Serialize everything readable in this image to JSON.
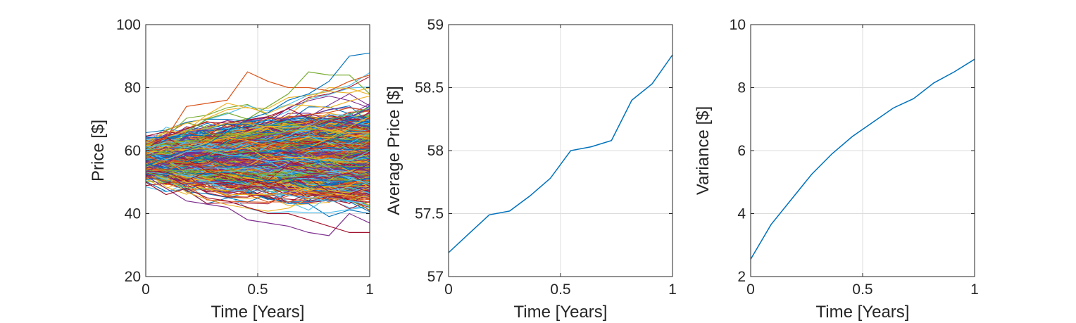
{
  "colors": {
    "axis": "#262626",
    "grid": "#dcdcdc",
    "line": "#0072bd",
    "palette": [
      "#0072bd",
      "#d95319",
      "#edb120",
      "#7e2f8e",
      "#77ac30",
      "#4dbeee",
      "#a2142f"
    ]
  },
  "chart_data": [
    {
      "type": "line",
      "xlabel": "Time [Years]",
      "ylabel": "Price [$]",
      "xlim": [
        0,
        1
      ],
      "ylim": [
        20,
        100
      ],
      "xticks": [
        "0",
        "0.5",
        "1"
      ],
      "yticks": [
        "20",
        "40",
        "60",
        "80",
        "100"
      ],
      "grid": true,
      "x": [
        0,
        0.0909,
        0.1818,
        0.2727,
        0.3636,
        0.4545,
        0.5455,
        0.6364,
        0.7273,
        0.8182,
        0.9091,
        1.0
      ],
      "simulated_paths": 1000,
      "initial_price": 57.2,
      "highlighted_paths": [
        {
          "values": [
            62,
            64,
            74,
            75,
            76,
            85,
            82,
            80,
            80,
            79,
            82,
            84
          ]
        },
        {
          "values": [
            58,
            60,
            66,
            70,
            72,
            70,
            74,
            78,
            85,
            84,
            84,
            78
          ]
        },
        {
          "values": [
            55,
            58,
            60,
            62,
            66,
            70,
            72,
            76,
            78,
            82,
            90,
            91
          ]
        },
        {
          "values": [
            52,
            48,
            44,
            43,
            42,
            38,
            37,
            36,
            34,
            33,
            40,
            37
          ]
        },
        {
          "values": [
            50,
            46,
            48,
            45,
            44,
            42,
            40,
            40,
            38,
            36,
            34,
            34
          ]
        }
      ]
    },
    {
      "type": "line",
      "xlabel": "Time [Years]",
      "ylabel": "Average Price [$]",
      "xlim": [
        0,
        1
      ],
      "ylim": [
        57,
        59
      ],
      "xticks": [
        "0",
        "0.5",
        "1"
      ],
      "yticks": [
        "57",
        "57.5",
        "58",
        "58.5",
        "59"
      ],
      "grid": true,
      "x": [
        0,
        0.0909,
        0.1818,
        0.2727,
        0.3636,
        0.4545,
        0.5455,
        0.6364,
        0.7273,
        0.8182,
        0.9091,
        1.0
      ],
      "values": [
        57.19,
        57.34,
        57.49,
        57.52,
        57.64,
        57.78,
        58.0,
        58.03,
        58.08,
        58.4,
        58.53,
        58.76
      ]
    },
    {
      "type": "line",
      "xlabel": "Time [Years]",
      "ylabel": "Variance [$]",
      "xlim": [
        0,
        1
      ],
      "ylim": [
        2,
        10
      ],
      "xticks": [
        "0",
        "0.5",
        "1"
      ],
      "yticks": [
        "2",
        "4",
        "6",
        "8",
        "10"
      ],
      "grid": true,
      "x": [
        0,
        0.0909,
        0.1818,
        0.2727,
        0.3636,
        0.4545,
        0.5455,
        0.6364,
        0.7273,
        0.8182,
        0.9091,
        1.0
      ],
      "values": [
        2.55,
        3.65,
        4.45,
        5.25,
        5.9,
        6.45,
        6.9,
        7.35,
        7.65,
        8.15,
        8.5,
        8.9
      ]
    }
  ]
}
